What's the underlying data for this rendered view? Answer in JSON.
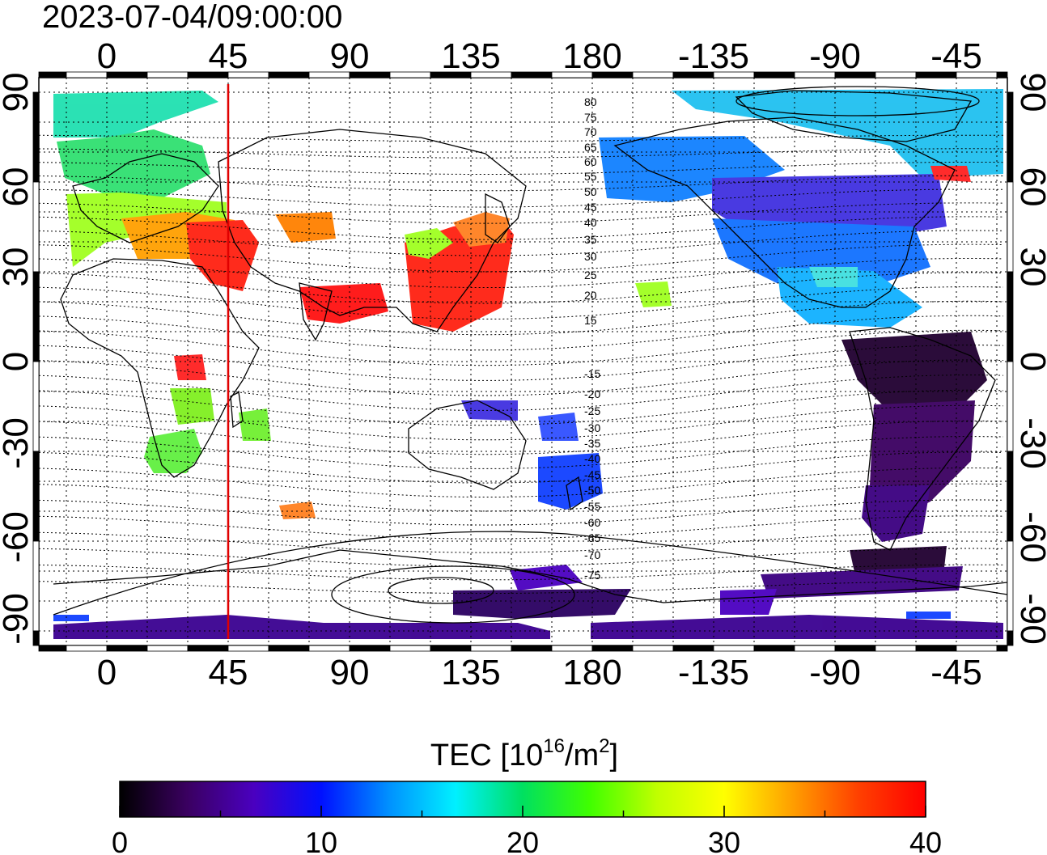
{
  "timestamp": "2023-07-04/09:00:00",
  "longitude_ticks": [
    "0",
    "45",
    "90",
    "135",
    "180",
    "-135",
    "-90",
    "-45"
  ],
  "latitude_ticks": [
    "90",
    "60",
    "30",
    "0",
    "-30",
    "-60",
    "-90"
  ],
  "contour_labels": {
    "north": [
      "80",
      "75",
      "70",
      "65",
      "60",
      "55",
      "50",
      "45",
      "40",
      "35",
      "30",
      "25",
      "20",
      "15"
    ],
    "south": [
      "-15",
      "-20",
      "-25",
      "-30",
      "-35",
      "-40",
      "-45",
      "-50",
      "-55",
      "-60",
      "-65",
      "-70",
      "-75"
    ]
  },
  "marker_longitude": 45,
  "colorbar": {
    "title": "TEC  [10",
    "title_sup": "16",
    "title_mid": "/m",
    "title_sup2": "2",
    "title_end": "]",
    "tick_labels": [
      "0",
      "10",
      "20",
      "30",
      "40"
    ],
    "range": [
      0,
      40
    ],
    "colors": [
      "#000000",
      "#3a0060",
      "#4a00c0",
      "#0010ff",
      "#0090ff",
      "#00f0ff",
      "#00e060",
      "#40ff00",
      "#c0ff00",
      "#ffff00",
      "#ffa000",
      "#ff4000",
      "#ff0000"
    ]
  },
  "colors": {
    "marker_line": "#e00000",
    "grid": "#000000",
    "background": "#ffffff"
  }
}
